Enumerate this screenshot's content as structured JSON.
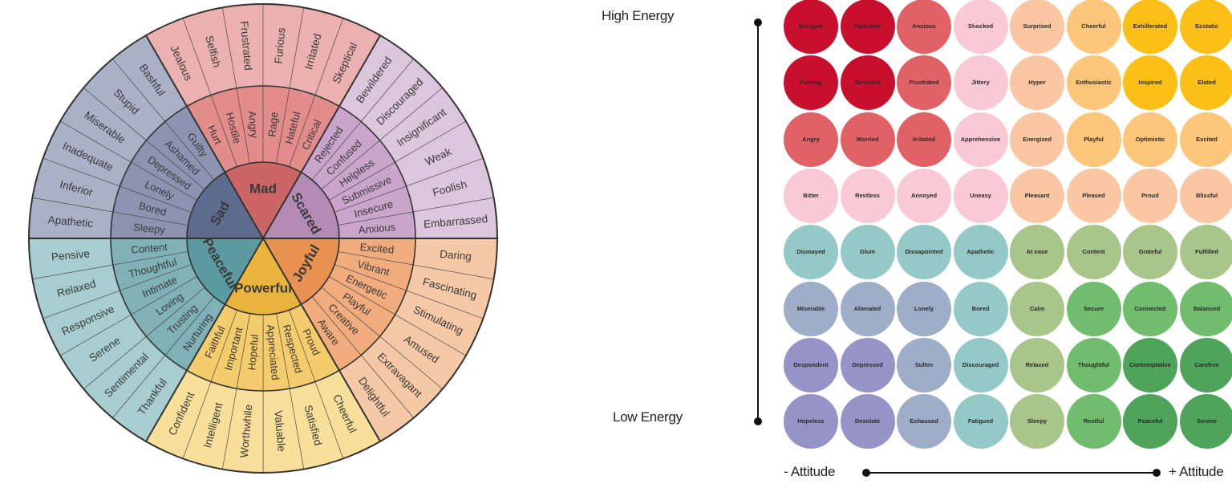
{
  "wheel": {
    "core": [
      {
        "label": "Mad",
        "color": "#cc6666"
      },
      {
        "label": "Scared",
        "color": "#b48bb5"
      },
      {
        "label": "Joyful",
        "color": "#e89150"
      },
      {
        "label": "Powerful",
        "color": "#e9b43c"
      },
      {
        "label": "Peaceful",
        "color": "#5b9aa0"
      },
      {
        "label": "Sad",
        "color": "#5d6b8f"
      }
    ],
    "middle": [
      [
        "Hurt",
        "Hostile",
        "Angry",
        "Rage",
        "Hateful",
        "Critical"
      ],
      [
        "Rejected",
        "Confused",
        "Helpless",
        "Submissive",
        "Insecure",
        "Anxious"
      ],
      [
        "Excited",
        "Vibrant",
        "Energetic",
        "Playful",
        "Creative",
        "Aware"
      ],
      [
        "Proud",
        "Respected",
        "Appreciated",
        "Hopeful",
        "Important",
        "Faithful"
      ],
      [
        "Nurturing",
        "Trusting",
        "Loving",
        "Intimate",
        "Thoughtful",
        "Content"
      ],
      [
        "Sleepy",
        "Bored",
        "Lonely",
        "Depressed",
        "Ashamed",
        "Guilty"
      ]
    ],
    "outer": [
      [
        "Jealous",
        "Selfish",
        "Frustrated",
        "Furious",
        "Irritated",
        "Skeptical"
      ],
      [
        "Bewildered",
        "Discouraged",
        "Insignificant",
        "Weak",
        "Foolish",
        "Embarrassed"
      ],
      [
        "Daring",
        "Fascinating",
        "Stimulating",
        "Amused",
        "Extravagant",
        "Delightful"
      ],
      [
        "Cheerful",
        "Satisfied",
        "Valuable",
        "Worthwhile",
        "Intelligent",
        "Confident"
      ],
      [
        "Thankful",
        "Sentimental",
        "Serene",
        "Responsive",
        "Relaxed",
        "Pensive"
      ],
      [
        "Apathetic",
        "Inferior",
        "Inadequate",
        "Miserable",
        "Stupid",
        "Bashful"
      ]
    ],
    "middle_colors": [
      "#e28c8c",
      "#c9a5cb",
      "#f0ac7c",
      "#f4cc6c",
      "#7fb1b6",
      "#8c94b2"
    ],
    "outer_colors": [
      "#ebb1b1",
      "#dcc6dd",
      "#f5c9a6",
      "#f8df9a",
      "#a8cdd0",
      "#aab0c6"
    ]
  },
  "mood_meter": {
    "y_axis_top_label": "High Energy",
    "y_axis_bottom_label": "Low Energy",
    "x_axis_left_label": "- Attitude",
    "x_axis_right_label": "+ Attitude",
    "rows": [
      [
        {
          "label": "Enraged",
          "color": "#c8102e"
        },
        {
          "label": "Panicked",
          "color": "#c8102e"
        },
        {
          "label": "Anxious",
          "color": "#e06266"
        },
        {
          "label": "Shocked",
          "color": "#fac9d6"
        },
        {
          "label": "Surprised",
          "color": "#fbc6a2"
        },
        {
          "label": "Cheerful",
          "color": "#fdc67a"
        },
        {
          "label": "Exhillerated",
          "color": "#fcbf16"
        },
        {
          "label": "Ecstatic",
          "color": "#fcbf16"
        }
      ],
      [
        {
          "label": "Fuming",
          "color": "#c8102e"
        },
        {
          "label": "Stressed",
          "color": "#c8102e"
        },
        {
          "label": "Frustrated",
          "color": "#e06266"
        },
        {
          "label": "Jittery",
          "color": "#fac9d6"
        },
        {
          "label": "Hyper",
          "color": "#fbc6a2"
        },
        {
          "label": "Enthusiastic",
          "color": "#fdc67a"
        },
        {
          "label": "Inspired",
          "color": "#fcbf16"
        },
        {
          "label": "Elated",
          "color": "#fcbf16"
        }
      ],
      [
        {
          "label": "Angry",
          "color": "#e06266"
        },
        {
          "label": "Worried",
          "color": "#e06266"
        },
        {
          "label": "Irritated",
          "color": "#e06266"
        },
        {
          "label": "Apprehensive",
          "color": "#fac9d6"
        },
        {
          "label": "Energized",
          "color": "#fbc6a2"
        },
        {
          "label": "Playful",
          "color": "#fdc67a"
        },
        {
          "label": "Optimistic",
          "color": "#fdc67a"
        },
        {
          "label": "Excited",
          "color": "#fdc67a"
        }
      ],
      [
        {
          "label": "Bitter",
          "color": "#fac9d6"
        },
        {
          "label": "Restless",
          "color": "#fac9d6"
        },
        {
          "label": "Annoyed",
          "color": "#fac9d6"
        },
        {
          "label": "Uneasy",
          "color": "#fac9d6"
        },
        {
          "label": "Pleasant",
          "color": "#fbc6a2"
        },
        {
          "label": "Pleased",
          "color": "#fbc6a2"
        },
        {
          "label": "Proud",
          "color": "#fbc6a2"
        },
        {
          "label": "Blissful",
          "color": "#fbc6a2"
        }
      ],
      [
        {
          "label": "Dismayed",
          "color": "#95c9c7"
        },
        {
          "label": "Glum",
          "color": "#95c9c7"
        },
        {
          "label": "Dissapointed",
          "color": "#95c9c7"
        },
        {
          "label": "Apathetic",
          "color": "#95c9c7"
        },
        {
          "label": "At ease",
          "color": "#a9c68a"
        },
        {
          "label": "Content",
          "color": "#a9c68a"
        },
        {
          "label": "Grateful",
          "color": "#a9c68a"
        },
        {
          "label": "Fulfilled",
          "color": "#a9c68a"
        }
      ],
      [
        {
          "label": "Miserable",
          "color": "#9eadc8"
        },
        {
          "label": "Alienated",
          "color": "#9eadc8"
        },
        {
          "label": "Lonely",
          "color": "#9eadc8"
        },
        {
          "label": "Bored",
          "color": "#95c9c7"
        },
        {
          "label": "Calm",
          "color": "#a9c68a"
        },
        {
          "label": "Secure",
          "color": "#6fbd6d"
        },
        {
          "label": "Connected",
          "color": "#6fbd6d"
        },
        {
          "label": "Balanced",
          "color": "#6fbd6d"
        }
      ],
      [
        {
          "label": "Despondent",
          "color": "#9594c6"
        },
        {
          "label": "Depressed",
          "color": "#9594c6"
        },
        {
          "label": "Sullen",
          "color": "#9eadc8"
        },
        {
          "label": "Discouraged",
          "color": "#95c9c7"
        },
        {
          "label": "Relaxed",
          "color": "#a9c68a"
        },
        {
          "label": "Thoughtful",
          "color": "#6fbd6d"
        },
        {
          "label": "Contemplative",
          "color": "#4fa35a"
        },
        {
          "label": "Carefree",
          "color": "#4fa35a"
        }
      ],
      [
        {
          "label": "Hopeless",
          "color": "#9594c6"
        },
        {
          "label": "Desolate",
          "color": "#9594c6"
        },
        {
          "label": "Exhaused",
          "color": "#9eadc8"
        },
        {
          "label": "Fatigued",
          "color": "#95c9c7"
        },
        {
          "label": "Sleepy",
          "color": "#a9c68a"
        },
        {
          "label": "Restful",
          "color": "#6fbd6d"
        },
        {
          "label": "Peaceful",
          "color": "#4fa35a"
        },
        {
          "label": "Serene",
          "color": "#4fa35a"
        }
      ]
    ]
  }
}
